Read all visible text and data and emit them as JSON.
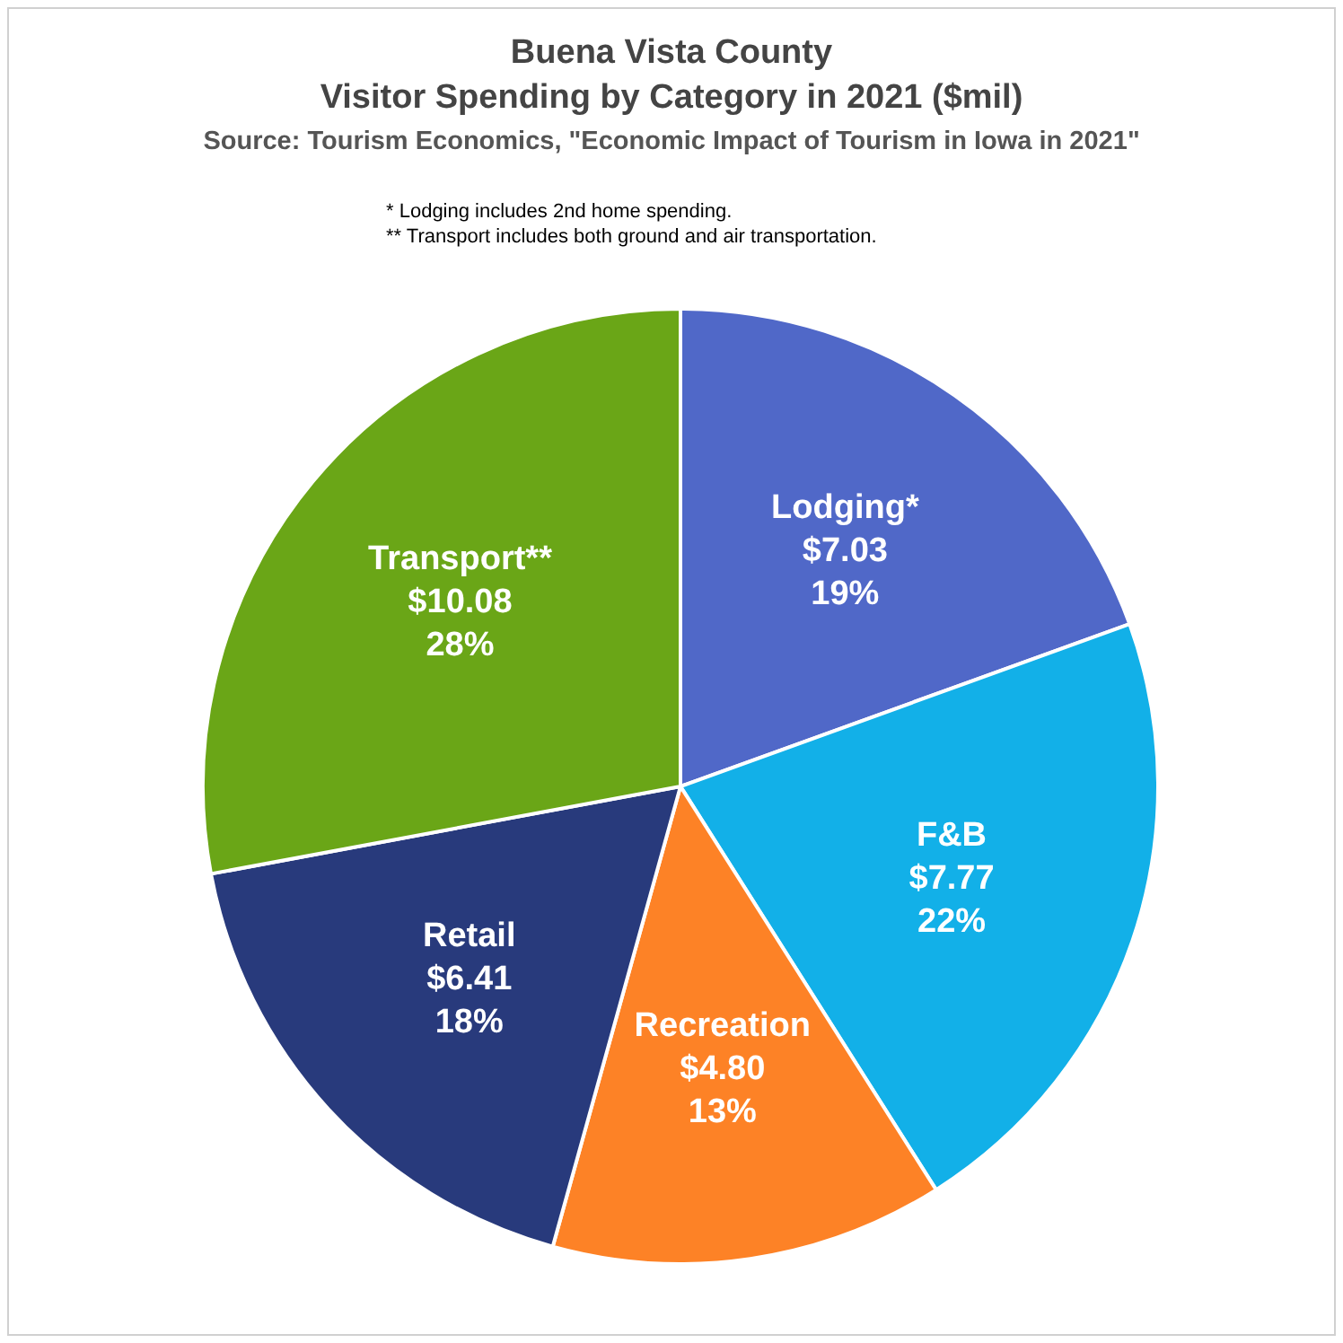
{
  "chart_data": {
    "type": "pie",
    "title": "Buena Vista County\nVisitor Spending by Category in 2021 ($mil)",
    "subtitle": "Source: Tourism Economics, \"Economic Impact of Tourism in Iowa in 2021\"",
    "annotations": [
      "* Lodging includes 2nd home spending.",
      "** Transport includes both ground and air transportation."
    ],
    "categories": [
      "Lodging*",
      "F&B",
      "Recreation",
      "Retail",
      "Transport**"
    ],
    "values": [
      7.03,
      7.77,
      4.8,
      6.41,
      10.08
    ],
    "colors": [
      "#5068c8",
      "#12b0e8",
      "#fd8226",
      "#283a7c",
      "#6aa617"
    ],
    "value_labels": [
      "$7.03\n19%",
      "$7.77\n22%",
      "$4.80\n13%",
      "$6.41\n18%",
      "$10.08\n28%"
    ],
    "legend": false
  }
}
